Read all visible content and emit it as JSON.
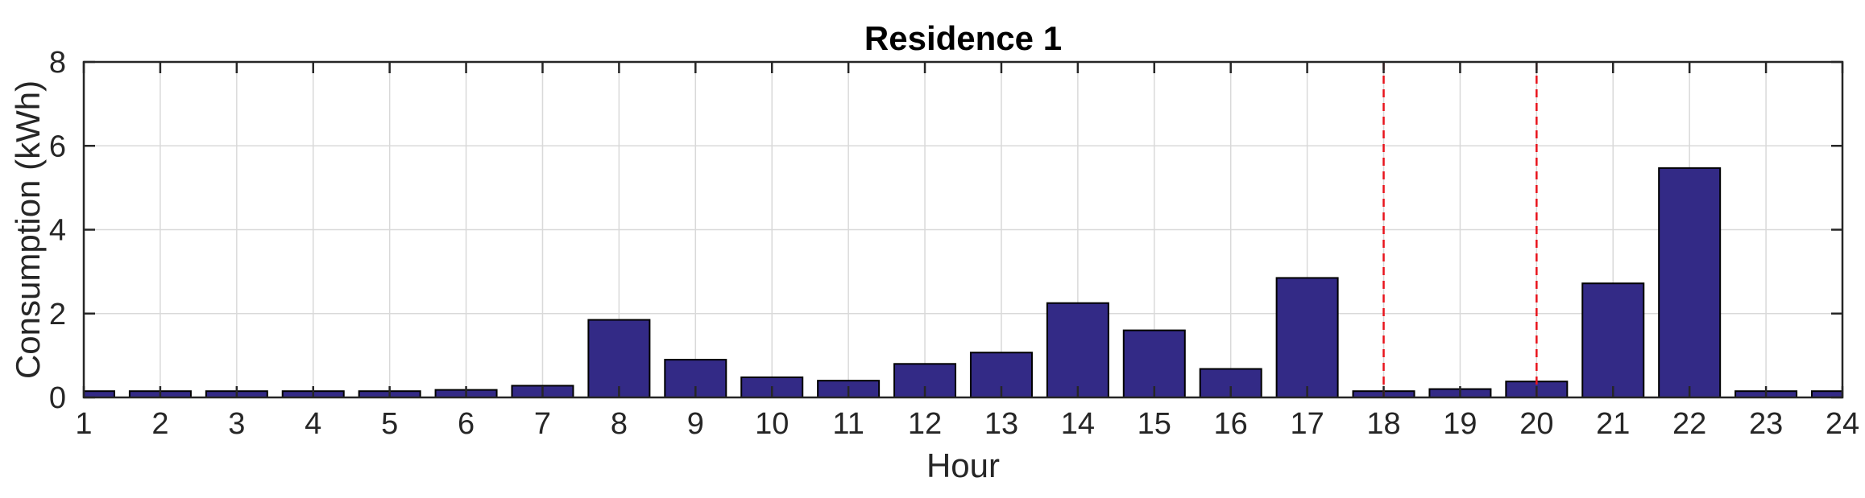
{
  "chart_data": {
    "type": "bar",
    "title": "Residence 1",
    "xlabel": "Hour",
    "ylabel": "Consumption (kWh)",
    "x": [
      1,
      2,
      3,
      4,
      5,
      6,
      7,
      8,
      9,
      10,
      11,
      12,
      13,
      14,
      15,
      16,
      17,
      18,
      19,
      20,
      21,
      22,
      23,
      24
    ],
    "values": [
      0.15,
      0.15,
      0.15,
      0.15,
      0.15,
      0.18,
      0.28,
      1.85,
      0.9,
      0.48,
      0.4,
      0.8,
      1.07,
      2.25,
      1.6,
      0.68,
      2.85,
      0.15,
      0.2,
      0.38,
      2.72,
      5.47,
      0.15,
      0.15
    ],
    "xlim": [
      1,
      24
    ],
    "ylim": [
      0,
      8
    ],
    "xticks": [
      1,
      2,
      3,
      4,
      5,
      6,
      7,
      8,
      9,
      10,
      11,
      12,
      13,
      14,
      15,
      16,
      17,
      18,
      19,
      20,
      21,
      22,
      23,
      24
    ],
    "yticks": [
      0,
      2,
      4,
      6,
      8
    ],
    "vertical_markers": [
      18,
      20
    ],
    "grid": true,
    "bar_color": "#332a86",
    "marker_color": "#e8141c"
  }
}
